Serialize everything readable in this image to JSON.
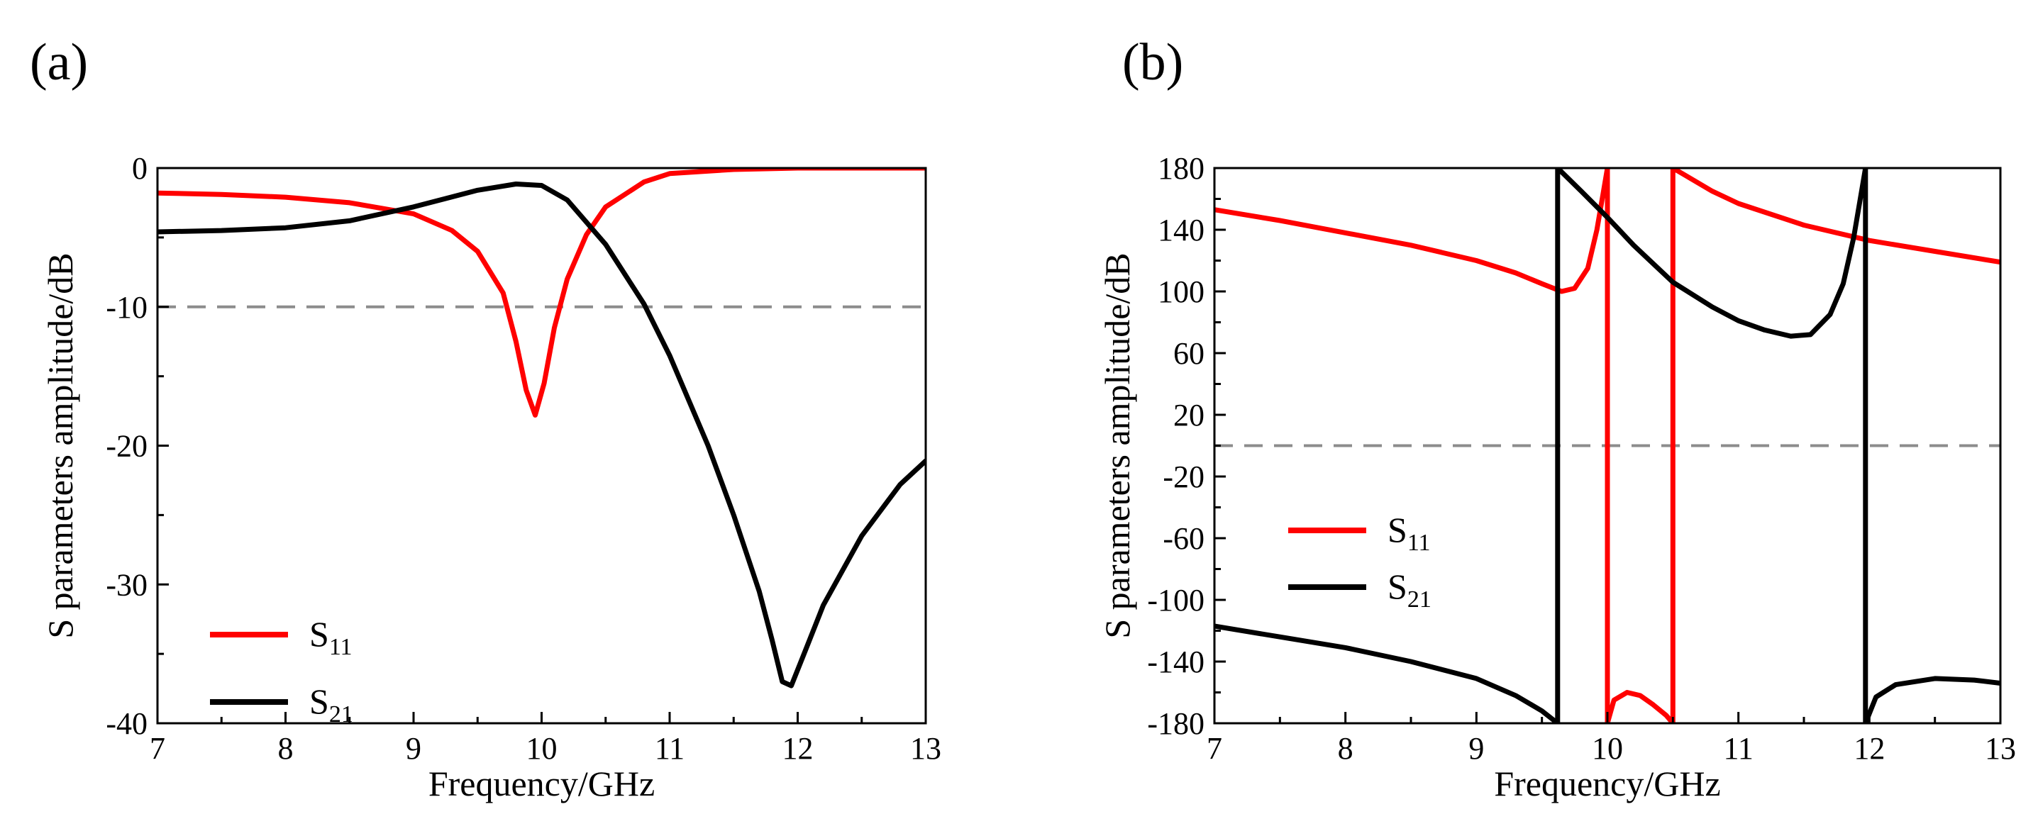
{
  "chart_data": [
    {
      "type": "line",
      "panel_label": "(a)",
      "xlabel": "Frequency/GHz",
      "ylabel": "S parameters amplitude/dB",
      "xlim": [
        7,
        13
      ],
      "ylim": [
        -40,
        0
      ],
      "xticks": [
        "7",
        "8",
        "9",
        "10",
        "11",
        "12",
        "13"
      ],
      "yticks": [
        "-40",
        "-30",
        "-20",
        "-10",
        "0"
      ],
      "grid": false,
      "legend_position": "bottom-left",
      "reference_line": {
        "y": -10,
        "style": "dashed",
        "color": "#8c8c8c"
      },
      "series": [
        {
          "name": "S",
          "subscript": "11",
          "color": "#ff0000",
          "x": [
            7.0,
            7.5,
            8.0,
            8.5,
            9.0,
            9.3,
            9.5,
            9.7,
            9.8,
            9.88,
            9.95,
            10.02,
            10.1,
            10.2,
            10.35,
            10.5,
            10.8,
            11.0,
            11.5,
            12.0,
            12.5,
            13.0
          ],
          "values": [
            -1.8,
            -1.9,
            -2.1,
            -2.5,
            -3.3,
            -4.5,
            -6.0,
            -9.0,
            -12.5,
            -16.0,
            -17.8,
            -15.5,
            -11.5,
            -8.0,
            -4.8,
            -2.8,
            -1.0,
            -0.4,
            -0.1,
            0.0,
            0.0,
            0.0
          ]
        },
        {
          "name": "S",
          "subscript": "21",
          "color": "#000000",
          "x": [
            7.0,
            7.5,
            8.0,
            8.5,
            9.0,
            9.5,
            9.8,
            10.0,
            10.2,
            10.5,
            10.8,
            11.0,
            11.3,
            11.5,
            11.7,
            11.8,
            11.88,
            11.95,
            12.05,
            12.2,
            12.5,
            12.8,
            13.0
          ],
          "values": [
            -4.6,
            -4.5,
            -4.3,
            -3.8,
            -2.8,
            -1.6,
            -1.15,
            -1.25,
            -2.3,
            -5.5,
            -9.8,
            -13.5,
            -20.0,
            -25.0,
            -30.5,
            -34.0,
            -37.0,
            -37.3,
            -35.0,
            -31.5,
            -26.5,
            -22.8,
            -21.1
          ]
        }
      ]
    },
    {
      "type": "line",
      "panel_label": "(b)",
      "xlabel": "Frequency/GHz",
      "ylabel": "S parameters amplitude/dB",
      "xlim": [
        7,
        13
      ],
      "ylim": [
        -180,
        180
      ],
      "xticks": [
        "7",
        "8",
        "9",
        "10",
        "11",
        "12",
        "13"
      ],
      "yticks": [
        "-180",
        "-140",
        "-100",
        "-60",
        "-20",
        "20",
        "60",
        "100",
        "140",
        "180"
      ],
      "grid": false,
      "legend_position": "middle-left",
      "reference_line": {
        "y": 0,
        "style": "dashed",
        "color": "#8c8c8c"
      },
      "series": [
        {
          "name": "S",
          "subscript": "11",
          "color": "#ff0000",
          "x": [
            7.0,
            7.5,
            8.0,
            8.5,
            9.0,
            9.3,
            9.5,
            9.65,
            9.75,
            9.85,
            9.92,
            9.97,
            10.0,
            10.0,
            10.05,
            10.15,
            10.25,
            10.35,
            10.45,
            10.5,
            10.5,
            10.6,
            10.8,
            11.0,
            11.5,
            12.0,
            12.5,
            13.0
          ],
          "values": [
            153,
            146,
            138,
            130,
            120,
            112,
            105,
            100,
            102,
            115,
            140,
            165,
            180,
            -180,
            -165,
            -160,
            -162,
            -168,
            -175,
            -180,
            180,
            175,
            165,
            157,
            143,
            133,
            126,
            119
          ]
        },
        {
          "name": "S",
          "subscript": "21",
          "color": "#000000",
          "x": [
            7.0,
            7.5,
            8.0,
            8.5,
            9.0,
            9.3,
            9.5,
            9.62,
            9.62,
            9.8,
            10.0,
            10.2,
            10.5,
            10.8,
            11.0,
            11.2,
            11.4,
            11.55,
            11.7,
            11.8,
            11.88,
            11.94,
            11.97,
            11.97,
            12.05,
            12.2,
            12.5,
            12.8,
            13.0
          ],
          "values": [
            -117,
            -124,
            -131,
            -140,
            -151,
            -162,
            -172,
            -180,
            180,
            165,
            148,
            130,
            106,
            90,
            81,
            75,
            71,
            72,
            85,
            105,
            135,
            165,
            180,
            -180,
            -163,
            -155,
            -151,
            -152,
            -154
          ]
        }
      ]
    }
  ]
}
